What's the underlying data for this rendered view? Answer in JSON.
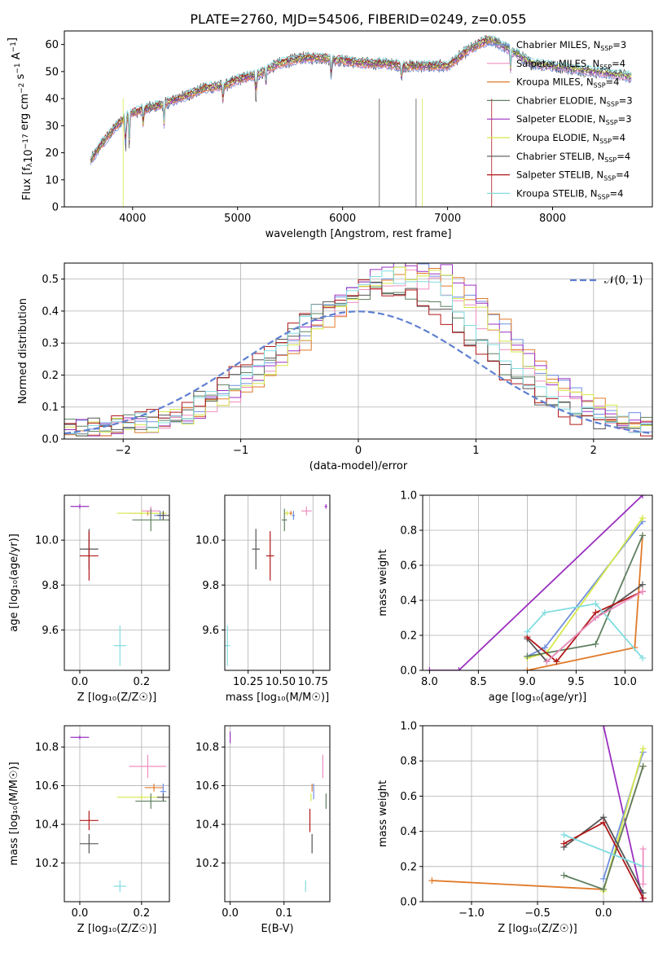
{
  "figure_title": "PLATE=2760, MJD=54506, FIBERID=0249, z=0.055",
  "colors": {
    "chabrier_miles": "#6f8fe0",
    "salpeter_miles": "#ef8ec0",
    "kroupa_miles": "#e07a2a",
    "chabrier_elodie": "#5f8060",
    "salpeter_elodie": "#9a30c0",
    "kroupa_elodie": "#d6e84a",
    "chabrier_stelib": "#555555",
    "salpeter_stelib": "#b01818",
    "kroupa_stelib": "#80dce0",
    "normal": "#6080d0",
    "grid": "#b0b0b0"
  },
  "chart_data": [
    {
      "id": "spectrum",
      "type": "line",
      "xlabel": "wavelength [Angstrom, rest frame]",
      "xlim": [
        3350,
        8950
      ],
      "ylim": [
        0,
        65
      ],
      "xticks": [
        4000,
        5000,
        6000,
        7000,
        8000
      ],
      "yticks": [
        0,
        10,
        20,
        30,
        40,
        50,
        60
      ],
      "legend_position": "right",
      "legend": [
        {
          "key": "chabrier_miles",
          "label": "Chabrier MILES, N",
          "sub": "SSP",
          "n": "=3"
        },
        {
          "key": "salpeter_miles",
          "label": "Salpeter MILES, N",
          "sub": "SSP",
          "n": "=4"
        },
        {
          "key": "kroupa_miles",
          "label": "Kroupa MILES, N",
          "sub": "SSP",
          "n": "=4"
        },
        {
          "key": "chabrier_elodie",
          "label": "Chabrier ELODIE, N",
          "sub": "SSP",
          "n": "=3"
        },
        {
          "key": "salpeter_elodie",
          "label": "Salpeter ELODIE, N",
          "sub": "SSP",
          "n": "=3"
        },
        {
          "key": "kroupa_elodie",
          "label": "Kroupa ELODIE, N",
          "sub": "SSP",
          "n": "=4"
        },
        {
          "key": "chabrier_stelib",
          "label": "Chabrier STELIB, N",
          "sub": "SSP",
          "n": "=4"
        },
        {
          "key": "salpeter_stelib",
          "label": "Salpeter STELIB, N",
          "sub": "SSP",
          "n": "=4"
        },
        {
          "key": "kroupa_stelib",
          "label": "Kroupa STELIB, N",
          "sub": "SSP",
          "n": "=4"
        }
      ],
      "continuum": [
        [
          3600,
          17
        ],
        [
          3700,
          23
        ],
        [
          3850,
          30
        ],
        [
          3950,
          34
        ],
        [
          4100,
          36
        ],
        [
          4300,
          38
        ],
        [
          4500,
          41
        ],
        [
          4700,
          44
        ],
        [
          4900,
          45
        ],
        [
          5000,
          47
        ],
        [
          5200,
          49
        ],
        [
          5400,
          53
        ],
        [
          5600,
          55
        ],
        [
          5800,
          55
        ],
        [
          6000,
          54
        ],
        [
          6200,
          53
        ],
        [
          6400,
          53
        ],
        [
          6600,
          52
        ],
        [
          6800,
          52
        ],
        [
          7000,
          52
        ],
        [
          7200,
          58
        ],
        [
          7400,
          62
        ],
        [
          7600,
          58
        ],
        [
          7800,
          53
        ],
        [
          8000,
          52
        ],
        [
          8200,
          51
        ],
        [
          8400,
          50
        ],
        [
          8600,
          49
        ],
        [
          8750,
          48
        ]
      ],
      "absorption_features": [
        [
          3934,
          14
        ],
        [
          3968,
          12
        ],
        [
          4102,
          6
        ],
        [
          4300,
          8
        ],
        [
          4861,
          6
        ],
        [
          5175,
          10
        ],
        [
          5270,
          5
        ],
        [
          5893,
          8
        ],
        [
          6563,
          6
        ],
        [
          7600,
          8
        ]
      ]
    },
    {
      "id": "residuals",
      "type": "histogram",
      "xlabel": "(data-model)/error",
      "ylabel": "Normed distribution",
      "xlim": [
        -2.5,
        2.5
      ],
      "ylim": [
        0,
        0.55
      ],
      "xticks": [
        -2,
        -1,
        0,
        1,
        2
      ],
      "yticks": [
        0.0,
        0.1,
        0.2,
        0.3,
        0.4,
        0.5
      ],
      "bin_width": 0.1,
      "legend_position": "top-right",
      "normal_label": "𝒩(0, 1)",
      "peak_scale": {
        "chabrier_miles": 1.2,
        "salpeter_miles": 1.12,
        "kroupa_miles": 1.18,
        "chabrier_elodie": 1.05,
        "salpeter_elodie": 1.25,
        "kroupa_elodie": 1.18,
        "chabrier_stelib": 1.08,
        "salpeter_stelib": 1.05,
        "kroupa_stelib": 1.15
      },
      "center": {
        "chabrier_miles": 0.45,
        "salpeter_miles": 0.4,
        "kroupa_miles": 0.5,
        "chabrier_elodie": 0.25,
        "salpeter_elodie": 0.45,
        "kroupa_elodie": 0.45,
        "chabrier_stelib": 0.2,
        "salpeter_stelib": 0.15,
        "kroupa_stelib": 0.3
      }
    },
    {
      "id": "age_vs_Z",
      "type": "scatter",
      "xlabel": "Z [log₁₀(Z/Z☉)]",
      "ylabel": "age  [log₁₀(age/yr)]",
      "xlim": [
        -0.05,
        0.29
      ],
      "ylim": [
        9.42,
        10.2
      ],
      "xticks": [
        0.0,
        0.2
      ],
      "yticks": [
        9.6,
        9.8,
        10.0
      ],
      "points": [
        {
          "key": "salpeter_elodie",
          "x": 0.0,
          "y": 10.15,
          "xerr": 0.03,
          "yerr": 0.01
        },
        {
          "key": "kroupa_miles",
          "x": 0.22,
          "y": 10.12,
          "xerr": 0.06,
          "yerr": 0.01
        },
        {
          "key": "salpeter_miles",
          "x": 0.23,
          "y": 10.13,
          "xerr": 0.03,
          "yerr": 0.02
        },
        {
          "key": "kroupa_elodie",
          "x": 0.2,
          "y": 10.12,
          "xerr": 0.08,
          "yerr": 0.01
        },
        {
          "key": "chabrier_miles",
          "x": 0.26,
          "y": 10.11,
          "xerr": 0.02,
          "yerr": 0.02
        },
        {
          "key": "chabrier_elodie",
          "x": 0.23,
          "y": 10.09,
          "xerr": 0.06,
          "yerr": 0.05
        },
        {
          "key": "chabrier_stelib",
          "x": 0.27,
          "y": 10.11,
          "xerr": 0.02,
          "yerr": 0.02
        },
        {
          "key": "chabrier_stelib",
          "x": 0.03,
          "y": 9.96,
          "xerr": 0.03,
          "yerr": 0.09
        },
        {
          "key": "salpeter_stelib",
          "x": 0.03,
          "y": 9.93,
          "xerr": 0.03,
          "yerr": 0.11
        },
        {
          "key": "kroupa_stelib",
          "x": 0.13,
          "y": 9.53,
          "xerr": 0.02,
          "yerr": 0.09
        }
      ]
    },
    {
      "id": "age_vs_mass",
      "type": "scatter",
      "xlabel": "mass [log₁₀(M/M☉)]",
      "ylabel": "",
      "xlim": [
        10.07,
        10.88
      ],
      "ylim": [
        9.42,
        10.2
      ],
      "xticks": [
        10.25,
        10.5,
        10.75
      ],
      "xticklabels": [
        "10.25",
        "10.50",
        "10.75"
      ],
      "yticks": [
        9.6,
        9.8,
        10.0
      ],
      "points": [
        {
          "key": "salpeter_elodie",
          "x": 10.85,
          "y": 10.15,
          "xerr": 0.01,
          "yerr": 0.01
        },
        {
          "key": "salpeter_miles",
          "x": 10.7,
          "y": 10.13,
          "xerr": 0.04,
          "yerr": 0.02
        },
        {
          "key": "kroupa_miles",
          "x": 10.58,
          "y": 10.12,
          "xerr": 0.01,
          "yerr": 0.01
        },
        {
          "key": "kroupa_elodie",
          "x": 10.55,
          "y": 10.12,
          "xerr": 0.02,
          "yerr": 0.01
        },
        {
          "key": "chabrier_miles",
          "x": 10.6,
          "y": 10.11,
          "xerr": 0.01,
          "yerr": 0.02
        },
        {
          "key": "chabrier_elodie",
          "x": 10.53,
          "y": 10.09,
          "xerr": 0.02,
          "yerr": 0.05
        },
        {
          "key": "chabrier_stelib",
          "x": 10.31,
          "y": 9.96,
          "xerr": 0.03,
          "yerr": 0.09
        },
        {
          "key": "salpeter_stelib",
          "x": 10.42,
          "y": 9.93,
          "xerr": 0.03,
          "yerr": 0.11
        },
        {
          "key": "kroupa_stelib",
          "x": 10.09,
          "y": 9.53,
          "xerr": 0.02,
          "yerr": 0.09
        }
      ]
    },
    {
      "id": "massweight_vs_age",
      "type": "line",
      "xlabel": "age  [log₁₀(age/yr)]",
      "ylabel": "mass weight",
      "xlim": [
        7.93,
        10.28
      ],
      "ylim": [
        0,
        1
      ],
      "xticks": [
        8.0,
        8.5,
        9.0,
        9.5,
        10.0
      ],
      "yticks": [
        0.0,
        0.2,
        0.4,
        0.6,
        0.8,
        1.0
      ],
      "series": [
        {
          "key": "salpeter_elodie",
          "points": [
            [
              8.0,
              0.0
            ],
            [
              8.3,
              0.0
            ],
            [
              10.18,
              1.0
            ]
          ]
        },
        {
          "key": "kroupa_miles",
          "points": [
            [
              9.0,
              0.0
            ],
            [
              10.1,
              0.13
            ],
            [
              10.18,
              0.77
            ]
          ]
        },
        {
          "key": "chabrier_miles",
          "points": [
            [
              9.0,
              0.08
            ],
            [
              9.18,
              0.13
            ],
            [
              10.18,
              0.85
            ]
          ]
        },
        {
          "key": "kroupa_elodie",
          "points": [
            [
              9.0,
              0.07
            ],
            [
              9.2,
              0.1
            ],
            [
              10.18,
              0.87
            ]
          ]
        },
        {
          "key": "chabrier_elodie",
          "points": [
            [
              9.0,
              0.08
            ],
            [
              9.7,
              0.15
            ],
            [
              10.18,
              0.77
            ]
          ]
        },
        {
          "key": "chabrier_stelib",
          "points": [
            [
              9.0,
              0.18
            ],
            [
              9.2,
              0.05
            ],
            [
              9.7,
              0.3
            ],
            [
              10.18,
              0.49
            ]
          ]
        },
        {
          "key": "salpeter_stelib",
          "points": [
            [
              9.0,
              0.19
            ],
            [
              9.3,
              0.05
            ],
            [
              9.7,
              0.33
            ],
            [
              10.18,
              0.45
            ]
          ]
        },
        {
          "key": "kroupa_stelib",
          "points": [
            [
              9.0,
              0.22
            ],
            [
              9.18,
              0.33
            ],
            [
              9.7,
              0.38
            ],
            [
              10.18,
              0.07
            ]
          ]
        },
        {
          "key": "salpeter_miles",
          "points": [
            [
              9.2,
              0.05
            ],
            [
              9.7,
              0.3
            ],
            [
              10.18,
              0.45
            ]
          ]
        }
      ]
    },
    {
      "id": "mass_vs_Z",
      "type": "scatter",
      "xlabel": "Z [log₁₀(Z/Z☉)]",
      "ylabel": "mass [log₁₀(M/M☉)]",
      "xlim": [
        -0.05,
        0.29
      ],
      "ylim": [
        10.0,
        10.91
      ],
      "xticks": [
        0.0,
        0.2
      ],
      "yticks": [
        10.2,
        10.4,
        10.6,
        10.8
      ],
      "points": [
        {
          "key": "salpeter_elodie",
          "x": 0.0,
          "y": 10.85,
          "xerr": 0.03,
          "yerr": 0.01
        },
        {
          "key": "salpeter_miles",
          "x": 0.22,
          "y": 10.7,
          "xerr": 0.06,
          "yerr": 0.06
        },
        {
          "key": "kroupa_miles",
          "x": 0.24,
          "y": 10.59,
          "xerr": 0.03,
          "yerr": 0.02
        },
        {
          "key": "chabrier_miles",
          "x": 0.27,
          "y": 10.57,
          "xerr": 0.01,
          "yerr": 0.04
        },
        {
          "key": "kroupa_elodie",
          "x": 0.2,
          "y": 10.54,
          "xerr": 0.08,
          "yerr": 0.01
        },
        {
          "key": "chabrier_elodie",
          "x": 0.23,
          "y": 10.52,
          "xerr": 0.05,
          "yerr": 0.04
        },
        {
          "key": "chabrier_stelib",
          "x": 0.27,
          "y": 10.54,
          "xerr": 0.02,
          "yerr": 0.02
        },
        {
          "key": "salpeter_stelib",
          "x": 0.03,
          "y": 10.42,
          "xerr": 0.03,
          "yerr": 0.05
        },
        {
          "key": "chabrier_stelib",
          "x": 0.03,
          "y": 10.3,
          "xerr": 0.03,
          "yerr": 0.05
        },
        {
          "key": "kroupa_stelib",
          "x": 0.13,
          "y": 10.08,
          "xerr": 0.02,
          "yerr": 0.03
        }
      ]
    },
    {
      "id": "mass_vs_EBV",
      "type": "scatter",
      "xlabel": "E(B-V)",
      "ylabel": "",
      "xlim": [
        -0.01,
        0.185
      ],
      "ylim": [
        10.0,
        10.91
      ],
      "xticks": [
        0.0,
        0.1
      ],
      "yticks": [
        10.2,
        10.4,
        10.6,
        10.8
      ],
      "points": [
        {
          "key": "salpeter_elodie",
          "x": 0.0,
          "y": 10.85,
          "xerr": 0.0,
          "yerr": 0.03
        },
        {
          "key": "salpeter_miles",
          "x": 0.172,
          "y": 10.7,
          "xerr": 0.0,
          "yerr": 0.06
        },
        {
          "key": "chabrier_miles",
          "x": 0.155,
          "y": 10.57,
          "xerr": 0.0,
          "yerr": 0.04
        },
        {
          "key": "kroupa_miles",
          "x": 0.152,
          "y": 10.59,
          "xerr": 0.0,
          "yerr": 0.02
        },
        {
          "key": "kroupa_elodie",
          "x": 0.15,
          "y": 10.54,
          "xerr": 0.0,
          "yerr": 0.02
        },
        {
          "key": "chabrier_elodie",
          "x": 0.178,
          "y": 10.52,
          "xerr": 0.0,
          "yerr": 0.04
        },
        {
          "key": "salpeter_stelib",
          "x": 0.148,
          "y": 10.42,
          "xerr": 0.0,
          "yerr": 0.06
        },
        {
          "key": "chabrier_stelib",
          "x": 0.152,
          "y": 10.3,
          "xerr": 0.0,
          "yerr": 0.05
        },
        {
          "key": "kroupa_stelib",
          "x": 0.14,
          "y": 10.08,
          "xerr": 0.0,
          "yerr": 0.03
        }
      ]
    },
    {
      "id": "massweight_vs_Z",
      "type": "line",
      "xlabel": "Z [log₁₀(Z/Z☉)]",
      "ylabel": "mass weight",
      "xlim": [
        -1.37,
        0.37
      ],
      "ylim": [
        0,
        1
      ],
      "xticks": [
        -1.0,
        -0.5,
        0.0
      ],
      "xticklabels": [
        "−1.0",
        "−0.5",
        "0.0"
      ],
      "yticks": [
        0.0,
        0.2,
        0.4,
        0.6,
        0.8,
        1.0
      ],
      "series": [
        {
          "key": "kroupa_miles",
          "points": [
            [
              -1.3,
              0.12
            ],
            [
              0.0,
              0.07
            ],
            [
              0.3,
              0.77
            ]
          ]
        },
        {
          "key": "salpeter_elodie",
          "points": [
            [
              0.0,
              1.0
            ],
            [
              0.3,
              0.0
            ]
          ]
        },
        {
          "key": "chabrier_miles",
          "points": [
            [
              0.0,
              0.13
            ],
            [
              0.3,
              0.85
            ]
          ]
        },
        {
          "key": "kroupa_elodie",
          "points": [
            [
              0.0,
              0.06
            ],
            [
              0.3,
              0.87
            ]
          ]
        },
        {
          "key": "chabrier_elodie",
          "points": [
            [
              -0.3,
              0.15
            ],
            [
              0.0,
              0.07
            ],
            [
              0.3,
              0.77
            ]
          ]
        },
        {
          "key": "chabrier_stelib",
          "points": [
            [
              -0.3,
              0.31
            ],
            [
              0.0,
              0.48
            ],
            [
              0.3,
              0.05
            ]
          ]
        },
        {
          "key": "salpeter_stelib",
          "points": [
            [
              -0.3,
              0.33
            ],
            [
              0.0,
              0.45
            ],
            [
              0.3,
              0.02
            ]
          ]
        },
        {
          "key": "kroupa_stelib",
          "points": [
            [
              -0.3,
              0.38
            ],
            [
              0.3,
              0.2
            ]
          ]
        },
        {
          "key": "salpeter_miles",
          "points": [
            [
              0.3,
              0.3
            ],
            [
              0.3,
              0.1
            ]
          ]
        }
      ]
    }
  ]
}
